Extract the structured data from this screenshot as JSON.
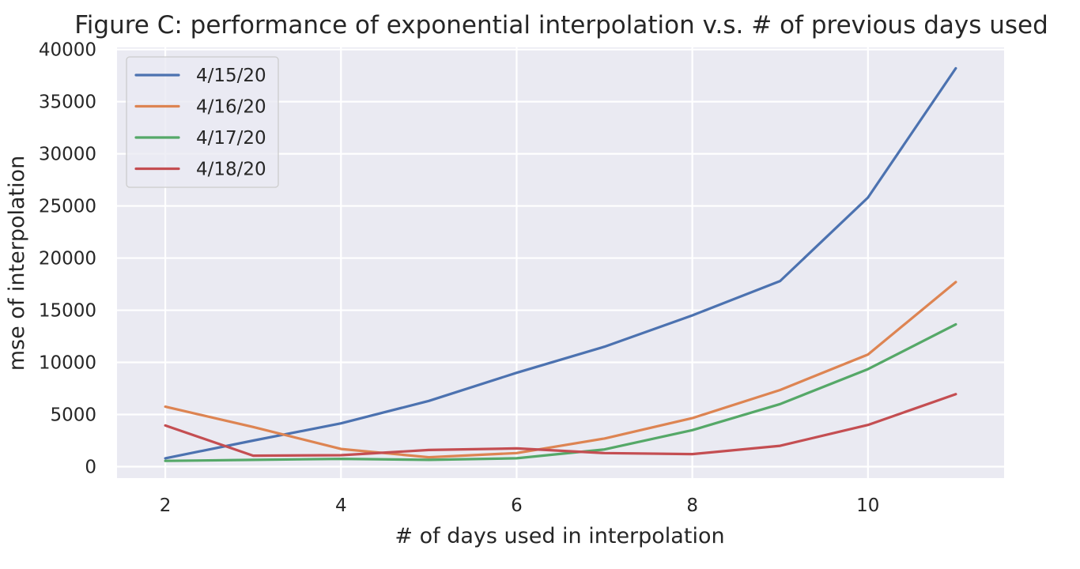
{
  "chart_data": {
    "type": "line",
    "title": "Figure C: performance of exponential interpolation v.s. # of previous days used",
    "xlabel": "# of days used in interpolation",
    "ylabel": "mse of interpolation",
    "x": [
      2,
      3,
      4,
      5,
      6,
      7,
      8,
      9,
      10,
      11
    ],
    "xlim": [
      1.45,
      11.55
    ],
    "ylim": [
      -1100,
      40200
    ],
    "xticks": [
      2,
      4,
      6,
      8,
      10
    ],
    "yticks": [
      0,
      5000,
      10000,
      15000,
      20000,
      25000,
      30000,
      35000,
      40000
    ],
    "grid": true,
    "background": "#eaeaf2",
    "legend_position": "top-left",
    "series": [
      {
        "name": "4/15/20",
        "color": "#4c72b0",
        "values": [
          800,
          2500,
          4150,
          6300,
          9000,
          11500,
          14500,
          17800,
          25800,
          38200
        ]
      },
      {
        "name": "4/16/20",
        "color": "#dd8452",
        "values": [
          5750,
          3800,
          1700,
          900,
          1300,
          2700,
          4650,
          7350,
          10750,
          17700
        ]
      },
      {
        "name": "4/17/20",
        "color": "#55a868",
        "values": [
          550,
          650,
          750,
          650,
          800,
          1650,
          3500,
          6000,
          9350,
          13650
        ]
      },
      {
        "name": "4/18/20",
        "color": "#c44e52",
        "values": [
          3950,
          1050,
          1100,
          1600,
          1750,
          1300,
          1200,
          2000,
          4000,
          6950
        ]
      }
    ]
  }
}
